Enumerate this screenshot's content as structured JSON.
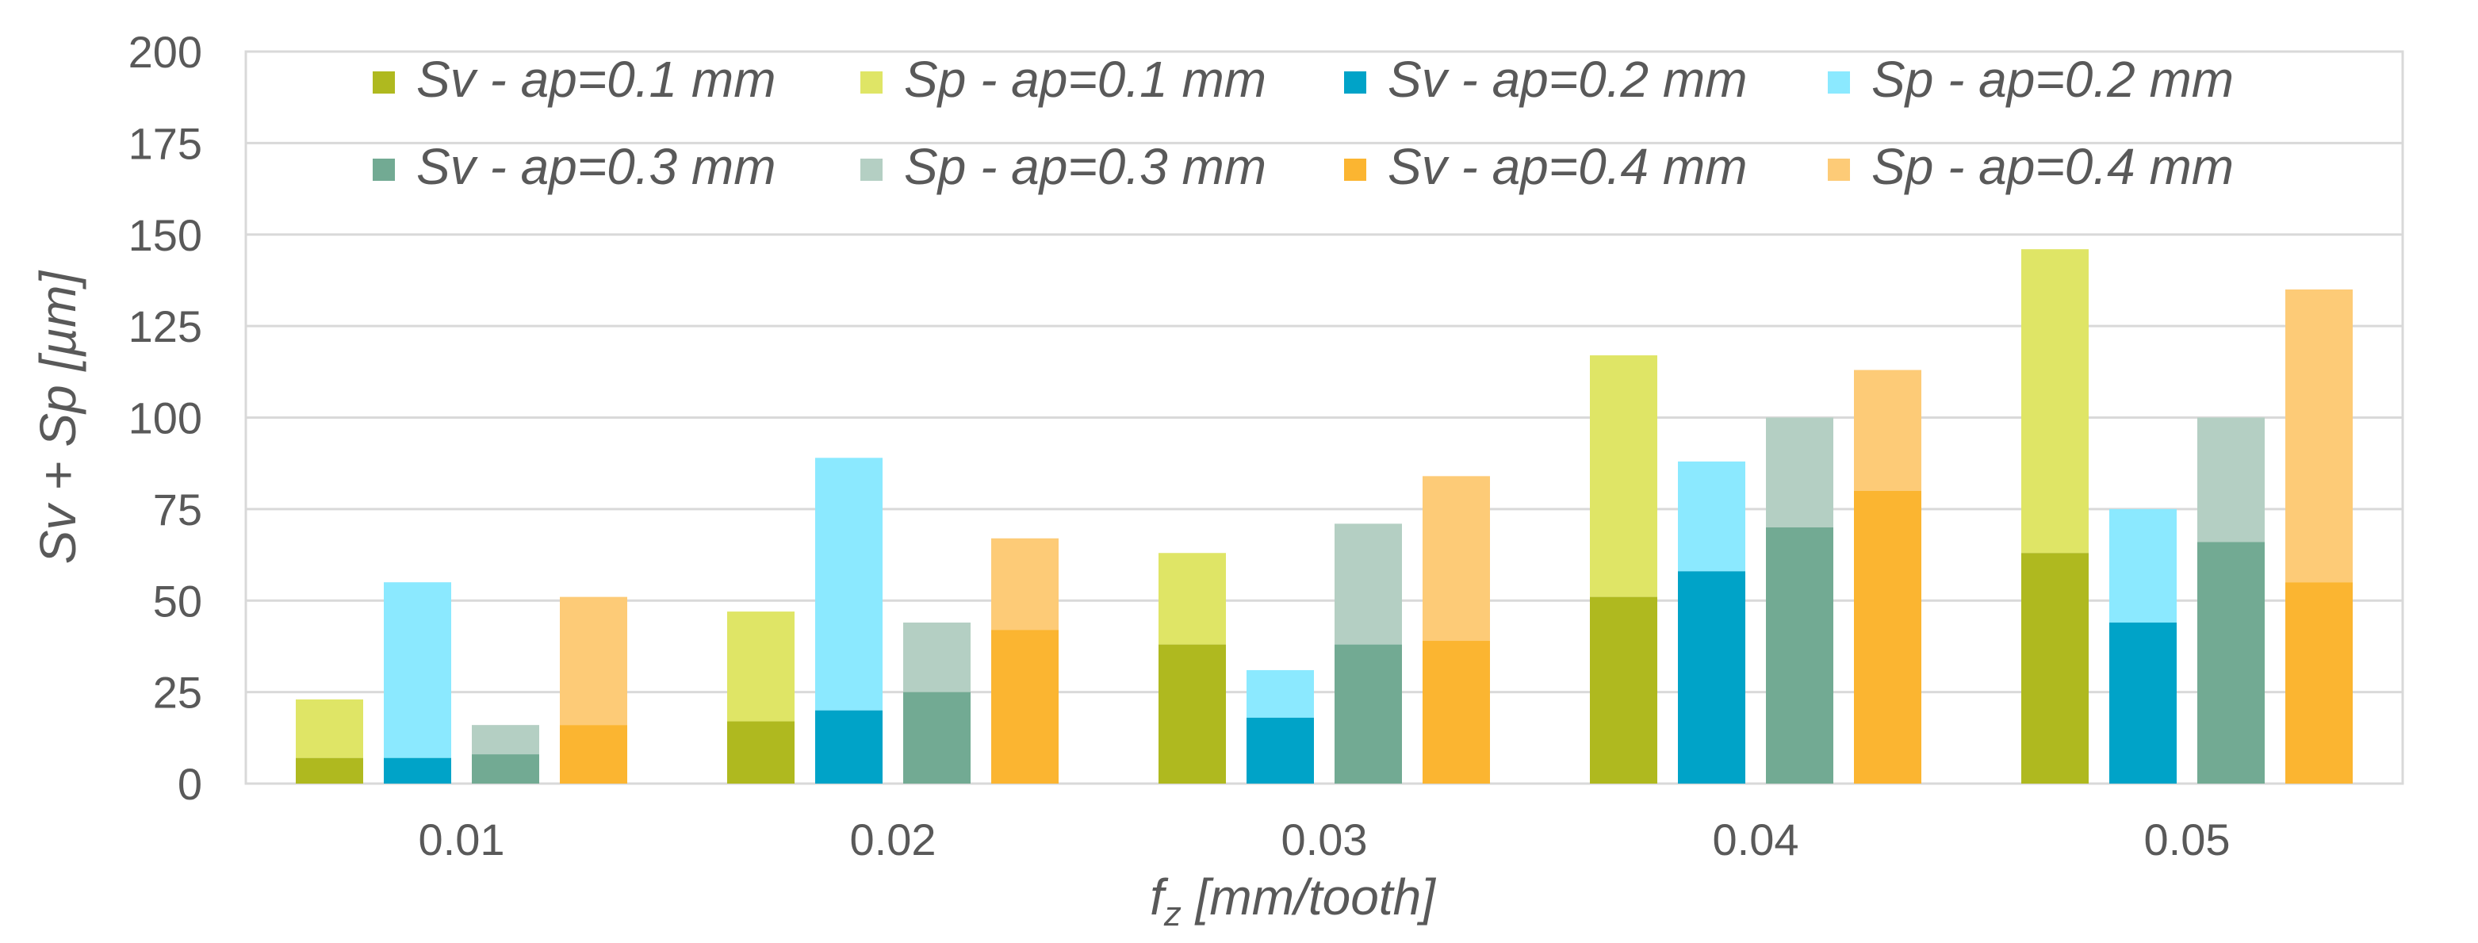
{
  "chart_data": {
    "type": "bar",
    "stacked_within_group": true,
    "title": "",
    "xlabel_main": "f",
    "xlabel_sub": "z",
    "xlabel_rest": " [mm/tooth]",
    "ylabel": "Sv + Sp [µm]",
    "ylim": [
      0,
      200
    ],
    "yticks": [
      "0",
      "25",
      "50",
      "75",
      "100",
      "125",
      "150",
      "175",
      "200"
    ],
    "categories": [
      "0.01",
      "0.02",
      "0.03",
      "0.04",
      "0.05"
    ],
    "groups": [
      {
        "name": "ap=0.1 mm",
        "sv": [
          7,
          17,
          38,
          51,
          63
        ],
        "total": [
          23,
          47,
          63,
          117,
          146
        ]
      },
      {
        "name": "ap=0.2 mm",
        "sv": [
          7,
          20,
          18,
          58,
          44
        ],
        "total": [
          55,
          89,
          31,
          88,
          75
        ]
      },
      {
        "name": "ap=0.3 mm",
        "sv": [
          8,
          25,
          38,
          70,
          66
        ],
        "total": [
          16,
          44,
          71,
          100,
          100
        ]
      },
      {
        "name": "ap=0.4 mm",
        "sv": [
          16,
          42,
          39,
          80,
          55
        ],
        "total": [
          51,
          67,
          84,
          113,
          135
        ]
      }
    ],
    "series": [
      {
        "name": "Sv - ap=0.1 mm",
        "color": "#afb91f"
      },
      {
        "name": "Sp - ap=0.1 mm",
        "color": "#dfe566"
      },
      {
        "name": "Sv - ap=0.2 mm",
        "color": "#00a3c8"
      },
      {
        "name": "Sp - ap=0.2 mm",
        "color": "#8be9ff"
      },
      {
        "name": "Sv - ap=0.3 mm",
        "color": "#72aa93"
      },
      {
        "name": "Sp - ap=0.3 mm",
        "color": "#b4cfc3"
      },
      {
        "name": "Sv - ap=0.4 mm",
        "color": "#fbb531"
      },
      {
        "name": "Sp - ap=0.4 mm",
        "color": "#fdcb77"
      }
    ],
    "legend_position": "top-center",
    "grid": true
  }
}
